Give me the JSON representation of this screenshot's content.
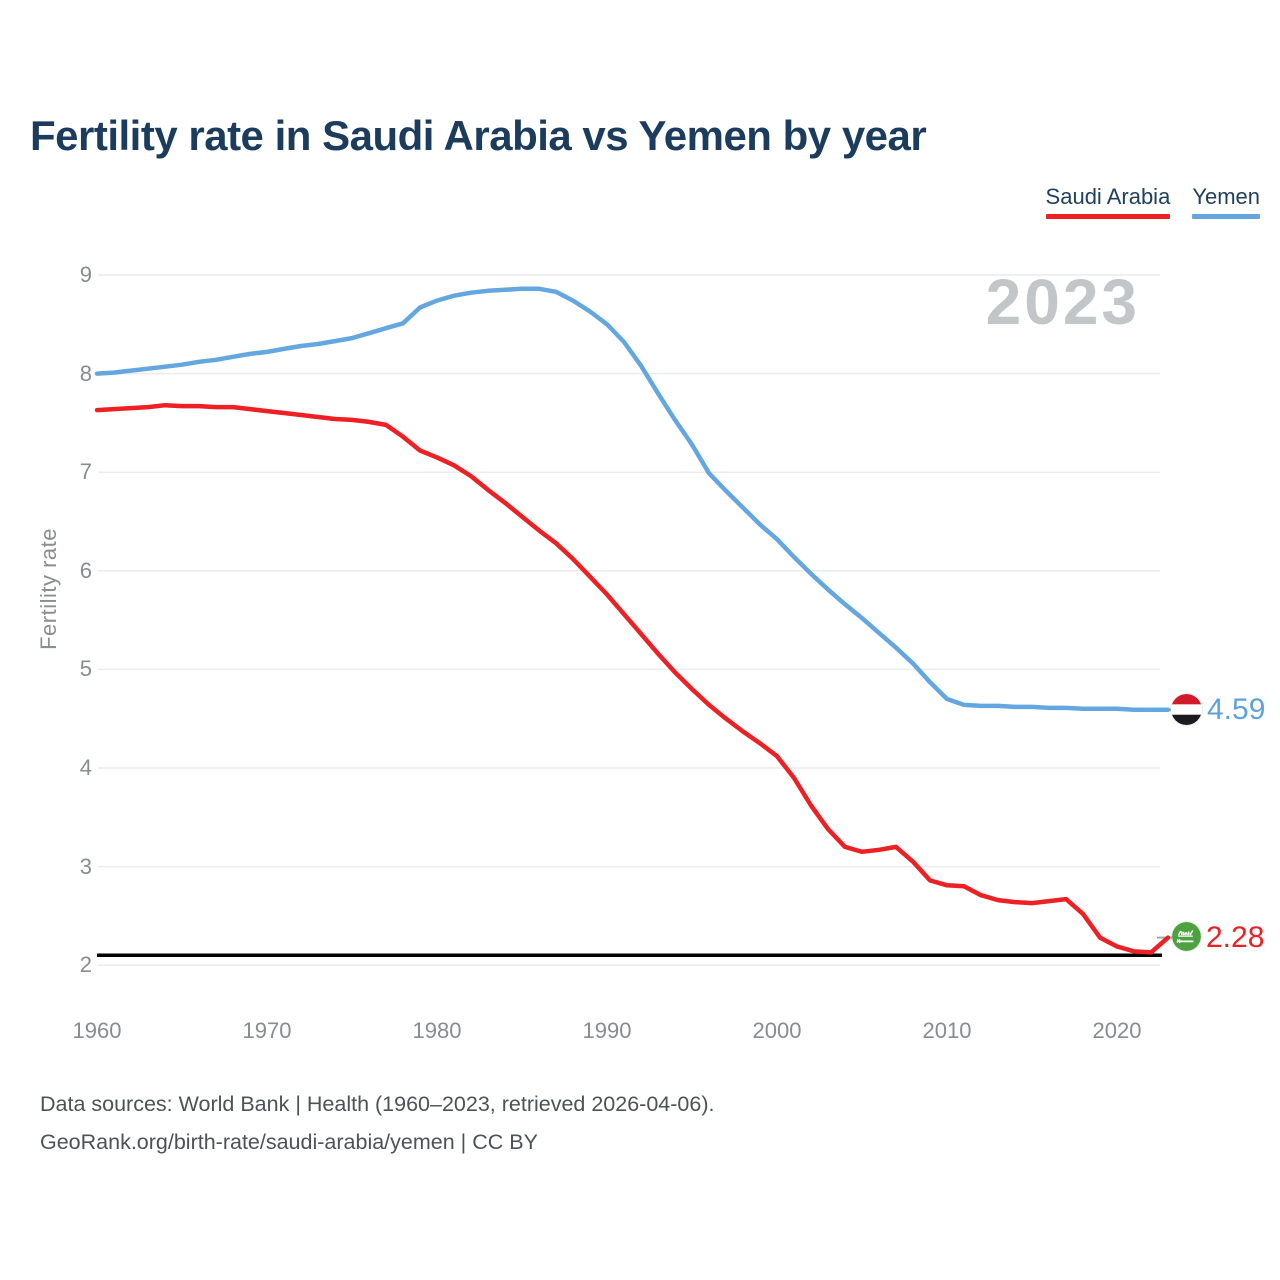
{
  "title": "Fertility rate in Saudi Arabia vs Yemen by year",
  "watermark": "2023",
  "legend": {
    "items": [
      {
        "label": "Saudi Arabia",
        "color": "#ee2024"
      },
      {
        "label": "Yemen",
        "color": "#64a7e0"
      }
    ]
  },
  "axes": {
    "y_title": "Fertility rate",
    "y_ticks": [
      9,
      8,
      7,
      6,
      5,
      4,
      3,
      2
    ],
    "x_ticks": [
      1960,
      1970,
      1980,
      1990,
      2000,
      2010,
      2020
    ]
  },
  "end_labels": {
    "yemen": {
      "value": "4.59",
      "color": "#5da2de"
    },
    "saudi_arabia": {
      "value": "2.28",
      "color": "#ee2024"
    }
  },
  "footer": {
    "line1": "Data sources: World Bank | Health (1960–2023, retrieved 2026-04-06).",
    "line2": "GeoRank.org/birth-rate/saudi-arabia/yemen | CC BY"
  },
  "chart_data": {
    "type": "line",
    "title": "Fertility rate in Saudi Arabia vs Yemen by year",
    "ylabel": "Fertility rate",
    "xlim": [
      1960,
      2023
    ],
    "ylim": [
      2,
      9
    ],
    "grid": "horizontal",
    "legend_position": "top-right",
    "watermark_year": "2023",
    "reference_line": {
      "value": 2.1,
      "color": "#000000"
    },
    "x": [
      1960,
      1961,
      1962,
      1963,
      1964,
      1965,
      1966,
      1967,
      1968,
      1969,
      1970,
      1971,
      1972,
      1973,
      1974,
      1975,
      1976,
      1977,
      1978,
      1979,
      1980,
      1981,
      1982,
      1983,
      1984,
      1985,
      1986,
      1987,
      1988,
      1989,
      1990,
      1991,
      1992,
      1993,
      1994,
      1995,
      1996,
      1997,
      1998,
      1999,
      2000,
      2001,
      2002,
      2003,
      2004,
      2005,
      2006,
      2007,
      2008,
      2009,
      2010,
      2011,
      2012,
      2013,
      2014,
      2015,
      2016,
      2017,
      2018,
      2019,
      2020,
      2021,
      2022,
      2023
    ],
    "series": [
      {
        "name": "Saudi Arabia",
        "color": "#ee2024",
        "end_value": 2.28,
        "values": [
          7.63,
          7.64,
          7.65,
          7.66,
          7.68,
          7.67,
          7.67,
          7.66,
          7.66,
          7.64,
          7.62,
          7.6,
          7.58,
          7.56,
          7.54,
          7.53,
          7.51,
          7.48,
          7.36,
          7.22,
          7.15,
          7.07,
          6.96,
          6.82,
          6.69,
          6.55,
          6.41,
          6.28,
          6.12,
          5.94,
          5.76,
          5.56,
          5.36,
          5.16,
          4.97,
          4.8,
          4.64,
          4.5,
          4.37,
          4.25,
          4.12,
          3.9,
          3.62,
          3.38,
          3.2,
          3.15,
          3.17,
          3.2,
          3.05,
          2.86,
          2.81,
          2.8,
          2.71,
          2.66,
          2.64,
          2.63,
          2.65,
          2.67,
          2.52,
          2.28,
          2.19,
          2.14,
          2.13,
          2.28
        ]
      },
      {
        "name": "Yemen",
        "color": "#64a7e0",
        "end_value": 4.59,
        "values": [
          8.0,
          8.01,
          8.03,
          8.05,
          8.07,
          8.09,
          8.12,
          8.14,
          8.17,
          8.2,
          8.22,
          8.25,
          8.28,
          8.3,
          8.33,
          8.36,
          8.41,
          8.46,
          8.51,
          8.67,
          8.74,
          8.79,
          8.82,
          8.84,
          8.85,
          8.86,
          8.86,
          8.83,
          8.74,
          8.63,
          8.5,
          8.32,
          8.08,
          7.8,
          7.53,
          7.28,
          6.99,
          6.81,
          6.64,
          6.47,
          6.32,
          6.14,
          5.97,
          5.81,
          5.66,
          5.52,
          5.37,
          5.22,
          5.06,
          4.87,
          4.7,
          4.64,
          4.63,
          4.63,
          4.62,
          4.62,
          4.61,
          4.61,
          4.6,
          4.6,
          4.6,
          4.59,
          4.59,
          4.59
        ]
      }
    ]
  }
}
